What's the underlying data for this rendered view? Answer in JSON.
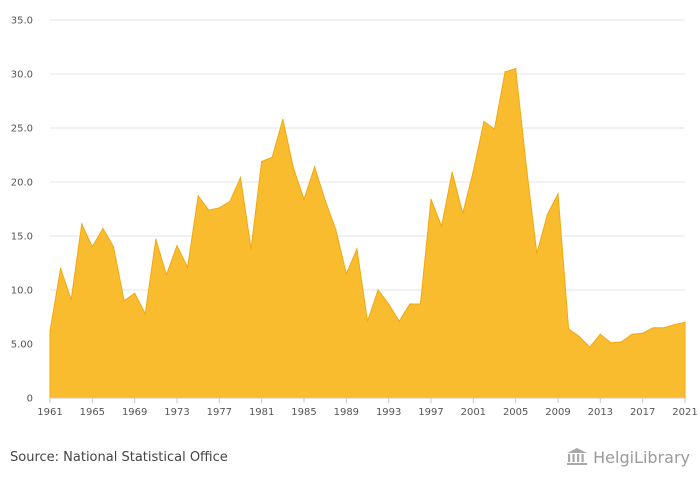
{
  "chart_data": {
    "type": "area",
    "title": "",
    "xlabel": "",
    "ylabel": "",
    "ylim": [
      0,
      35
    ],
    "yticks": [
      "0",
      "5.00",
      "10.0",
      "15.0",
      "20.0",
      "25.0",
      "30.0",
      "35.0"
    ],
    "xtick_labels": [
      "1961",
      "1965",
      "1969",
      "1973",
      "1977",
      "1981",
      "1985",
      "1989",
      "1993",
      "1997",
      "2001",
      "2005",
      "2009",
      "2013",
      "2017",
      "2021"
    ],
    "x": [
      1961,
      1962,
      1963,
      1964,
      1965,
      1966,
      1967,
      1968,
      1969,
      1970,
      1971,
      1972,
      1973,
      1974,
      1975,
      1976,
      1977,
      1978,
      1979,
      1980,
      1981,
      1982,
      1983,
      1984,
      1985,
      1986,
      1987,
      1988,
      1989,
      1990,
      1991,
      1992,
      1993,
      1994,
      1995,
      1996,
      1997,
      1998,
      1999,
      2000,
      2001,
      2002,
      2003,
      2004,
      2005,
      2006,
      2007,
      2008,
      2009,
      2010,
      2011,
      2012,
      2013,
      2014,
      2015,
      2016,
      2017,
      2018,
      2019,
      2020,
      2021
    ],
    "values": [
      6.2,
      12.0,
      9.1,
      16.1,
      14.0,
      15.7,
      14.0,
      9.0,
      9.7,
      7.8,
      14.7,
      11.4,
      14.1,
      12.1,
      18.7,
      17.4,
      17.6,
      18.2,
      20.4,
      13.8,
      21.9,
      22.3,
      25.8,
      21.3,
      18.4,
      21.4,
      18.3,
      15.6,
      11.5,
      13.8,
      7.1,
      10.0,
      8.7,
      7.1,
      8.7,
      8.7,
      18.4,
      15.9,
      20.9,
      17.1,
      21.0,
      25.6,
      24.9,
      30.2,
      30.5,
      21.5,
      13.4,
      17.0,
      18.9,
      6.4,
      5.7,
      4.7,
      5.9,
      5.1,
      5.2,
      5.9,
      6.0,
      6.5,
      6.5,
      6.8,
      7.0
    ],
    "fill_color": "#f9bc2f",
    "line_color": "#f1a80f",
    "grid": true
  },
  "footer": {
    "source": "Source: National Statistical Office"
  },
  "brand": {
    "name": "HelgiLibrary"
  }
}
